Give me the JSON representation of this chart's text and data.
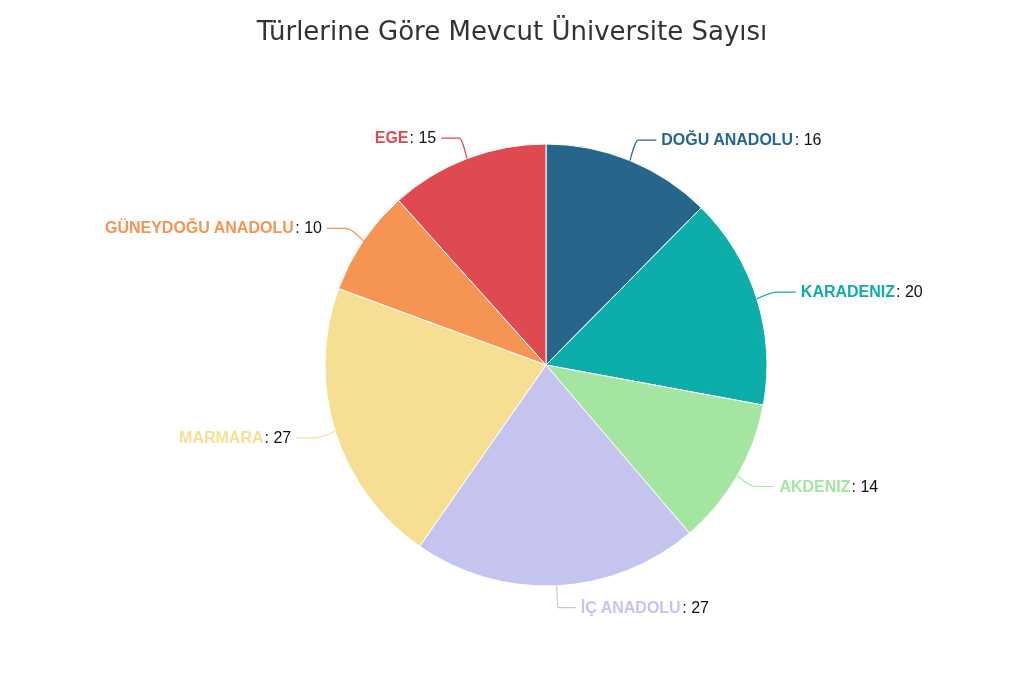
{
  "chart_data": {
    "type": "pie",
    "title": "Türlerine Göre Mevcut Üniversite Sayısı",
    "categories": [
      "DOĞU ANADOLU",
      "KARADENIZ",
      "AKDENIZ",
      "İÇ ANADOLU",
      "MARMARA",
      "GÜNEYDOĞU ANADOLU",
      "EGE"
    ],
    "values": [
      16,
      20,
      14,
      27,
      27,
      10,
      15
    ],
    "colors": [
      "#26668a",
      "#0daea9",
      "#a4e5a2",
      "#c5c4ee",
      "#f6df92",
      "#f59453",
      "#de4a4f"
    ],
    "value_labels": [
      ": 16",
      ": 20",
      ": 14",
      ": 27",
      ": 27",
      ": 10",
      ": 15"
    ],
    "legend": false
  }
}
